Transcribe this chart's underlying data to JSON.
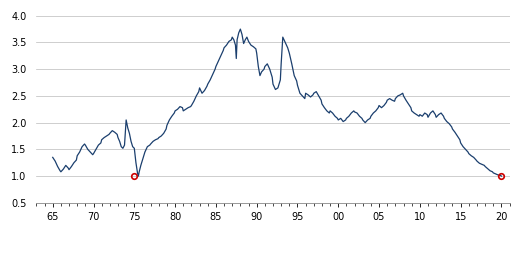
{
  "line_color": "#1B3F6E",
  "marker_color": "#CC0000",
  "xlim": [
    1963,
    2021
  ],
  "ylim": [
    0.5,
    4.1
  ],
  "yticks": [
    0.5,
    1.0,
    1.5,
    2.0,
    2.5,
    3.0,
    3.5,
    4.0
  ],
  "xtick_years": [
    1965,
    1970,
    1975,
    1980,
    1985,
    1990,
    1995,
    2000,
    2005,
    2010,
    2015,
    2020
  ],
  "xtick_labels": [
    "65",
    "70",
    "75",
    "80",
    "85",
    "90",
    "95",
    "00",
    "05",
    "10",
    "15",
    "20"
  ],
  "grid_color": "#BBBBBB",
  "background_color": "#FFFFFF",
  "marker_points": [
    [
      1975,
      1.0
    ],
    [
      2020,
      1.0
    ]
  ],
  "series": [
    [
      1965.0,
      1.35
    ],
    [
      1965.3,
      1.28
    ],
    [
      1965.6,
      1.18
    ],
    [
      1965.9,
      1.1
    ],
    [
      1966.0,
      1.08
    ],
    [
      1966.3,
      1.13
    ],
    [
      1966.6,
      1.2
    ],
    [
      1966.9,
      1.15
    ],
    [
      1967.0,
      1.12
    ],
    [
      1967.3,
      1.18
    ],
    [
      1967.6,
      1.25
    ],
    [
      1967.9,
      1.3
    ],
    [
      1968.0,
      1.38
    ],
    [
      1968.3,
      1.45
    ],
    [
      1968.6,
      1.55
    ],
    [
      1968.9,
      1.6
    ],
    [
      1969.0,
      1.58
    ],
    [
      1969.3,
      1.5
    ],
    [
      1969.6,
      1.45
    ],
    [
      1969.9,
      1.4
    ],
    [
      1970.0,
      1.42
    ],
    [
      1970.3,
      1.5
    ],
    [
      1970.6,
      1.58
    ],
    [
      1970.9,
      1.62
    ],
    [
      1971.0,
      1.68
    ],
    [
      1971.3,
      1.72
    ],
    [
      1971.6,
      1.75
    ],
    [
      1971.9,
      1.78
    ],
    [
      1972.0,
      1.8
    ],
    [
      1972.3,
      1.85
    ],
    [
      1972.6,
      1.82
    ],
    [
      1972.9,
      1.78
    ],
    [
      1973.0,
      1.72
    ],
    [
      1973.2,
      1.65
    ],
    [
      1973.4,
      1.55
    ],
    [
      1973.6,
      1.52
    ],
    [
      1973.8,
      1.58
    ],
    [
      1974.0,
      2.05
    ],
    [
      1974.2,
      1.9
    ],
    [
      1974.4,
      1.8
    ],
    [
      1974.6,
      1.65
    ],
    [
      1974.8,
      1.55
    ],
    [
      1975.0,
      1.52
    ],
    [
      1975.1,
      1.38
    ],
    [
      1975.2,
      1.25
    ],
    [
      1975.3,
      1.15
    ],
    [
      1975.4,
      1.05
    ],
    [
      1975.5,
      1.0
    ],
    [
      1975.6,
      1.08
    ],
    [
      1975.8,
      1.2
    ],
    [
      1976.0,
      1.3
    ],
    [
      1976.3,
      1.45
    ],
    [
      1976.6,
      1.55
    ],
    [
      1976.9,
      1.58
    ],
    [
      1977.0,
      1.6
    ],
    [
      1977.3,
      1.65
    ],
    [
      1977.6,
      1.68
    ],
    [
      1977.9,
      1.7
    ],
    [
      1978.0,
      1.72
    ],
    [
      1978.3,
      1.75
    ],
    [
      1978.6,
      1.8
    ],
    [
      1978.9,
      1.88
    ],
    [
      1979.0,
      1.95
    ],
    [
      1979.3,
      2.05
    ],
    [
      1979.6,
      2.12
    ],
    [
      1979.9,
      2.18
    ],
    [
      1980.0,
      2.22
    ],
    [
      1980.3,
      2.25
    ],
    [
      1980.6,
      2.3
    ],
    [
      1980.9,
      2.28
    ],
    [
      1981.0,
      2.22
    ],
    [
      1981.3,
      2.25
    ],
    [
      1981.6,
      2.28
    ],
    [
      1981.9,
      2.3
    ],
    [
      1982.0,
      2.32
    ],
    [
      1982.3,
      2.4
    ],
    [
      1982.6,
      2.5
    ],
    [
      1982.9,
      2.58
    ],
    [
      1983.0,
      2.65
    ],
    [
      1983.3,
      2.55
    ],
    [
      1983.6,
      2.6
    ],
    [
      1983.9,
      2.68
    ],
    [
      1984.0,
      2.72
    ],
    [
      1984.3,
      2.8
    ],
    [
      1984.6,
      2.9
    ],
    [
      1984.9,
      3.0
    ],
    [
      1985.0,
      3.05
    ],
    [
      1985.3,
      3.15
    ],
    [
      1985.6,
      3.25
    ],
    [
      1985.9,
      3.35
    ],
    [
      1986.0,
      3.4
    ],
    [
      1986.3,
      3.45
    ],
    [
      1986.6,
      3.52
    ],
    [
      1986.9,
      3.55
    ],
    [
      1987.0,
      3.6
    ],
    [
      1987.2,
      3.55
    ],
    [
      1987.4,
      3.45
    ],
    [
      1987.5,
      3.2
    ],
    [
      1987.6,
      3.55
    ],
    [
      1987.8,
      3.68
    ],
    [
      1988.0,
      3.75
    ],
    [
      1988.2,
      3.65
    ],
    [
      1988.4,
      3.48
    ],
    [
      1988.6,
      3.55
    ],
    [
      1988.8,
      3.6
    ],
    [
      1989.0,
      3.52
    ],
    [
      1989.3,
      3.45
    ],
    [
      1989.6,
      3.42
    ],
    [
      1989.9,
      3.38
    ],
    [
      1990.0,
      3.3
    ],
    [
      1990.2,
      3.05
    ],
    [
      1990.4,
      2.88
    ],
    [
      1990.6,
      2.95
    ],
    [
      1990.9,
      3.0
    ],
    [
      1991.0,
      3.05
    ],
    [
      1991.3,
      3.1
    ],
    [
      1991.6,
      3.0
    ],
    [
      1991.9,
      2.85
    ],
    [
      1992.0,
      2.72
    ],
    [
      1992.3,
      2.62
    ],
    [
      1992.6,
      2.65
    ],
    [
      1992.9,
      2.8
    ],
    [
      1993.0,
      3.1
    ],
    [
      1993.2,
      3.6
    ],
    [
      1993.5,
      3.5
    ],
    [
      1993.8,
      3.4
    ],
    [
      1994.0,
      3.3
    ],
    [
      1994.3,
      3.1
    ],
    [
      1994.6,
      2.88
    ],
    [
      1994.9,
      2.78
    ],
    [
      1995.0,
      2.7
    ],
    [
      1995.3,
      2.55
    ],
    [
      1995.6,
      2.5
    ],
    [
      1995.9,
      2.45
    ],
    [
      1996.0,
      2.55
    ],
    [
      1996.3,
      2.52
    ],
    [
      1996.6,
      2.48
    ],
    [
      1996.9,
      2.52
    ],
    [
      1997.0,
      2.55
    ],
    [
      1997.3,
      2.58
    ],
    [
      1997.6,
      2.5
    ],
    [
      1997.9,
      2.42
    ],
    [
      1998.0,
      2.35
    ],
    [
      1998.3,
      2.28
    ],
    [
      1998.6,
      2.22
    ],
    [
      1998.9,
      2.18
    ],
    [
      1999.0,
      2.22
    ],
    [
      1999.3,
      2.18
    ],
    [
      1999.6,
      2.12
    ],
    [
      1999.9,
      2.08
    ],
    [
      2000.0,
      2.05
    ],
    [
      2000.3,
      2.08
    ],
    [
      2000.6,
      2.02
    ],
    [
      2000.9,
      2.05
    ],
    [
      2001.0,
      2.08
    ],
    [
      2001.3,
      2.12
    ],
    [
      2001.6,
      2.18
    ],
    [
      2001.9,
      2.22
    ],
    [
      2002.0,
      2.2
    ],
    [
      2002.3,
      2.18
    ],
    [
      2002.6,
      2.12
    ],
    [
      2002.9,
      2.08
    ],
    [
      2003.0,
      2.05
    ],
    [
      2003.3,
      2.0
    ],
    [
      2003.6,
      2.05
    ],
    [
      2003.9,
      2.08
    ],
    [
      2004.0,
      2.12
    ],
    [
      2004.3,
      2.18
    ],
    [
      2004.6,
      2.22
    ],
    [
      2004.9,
      2.28
    ],
    [
      2005.0,
      2.32
    ],
    [
      2005.3,
      2.28
    ],
    [
      2005.6,
      2.32
    ],
    [
      2005.9,
      2.38
    ],
    [
      2006.0,
      2.42
    ],
    [
      2006.3,
      2.45
    ],
    [
      2006.6,
      2.42
    ],
    [
      2006.9,
      2.4
    ],
    [
      2007.0,
      2.45
    ],
    [
      2007.3,
      2.5
    ],
    [
      2007.6,
      2.52
    ],
    [
      2007.9,
      2.55
    ],
    [
      2008.0,
      2.5
    ],
    [
      2008.3,
      2.42
    ],
    [
      2008.6,
      2.35
    ],
    [
      2008.9,
      2.28
    ],
    [
      2009.0,
      2.22
    ],
    [
      2009.3,
      2.18
    ],
    [
      2009.6,
      2.15
    ],
    [
      2009.9,
      2.12
    ],
    [
      2010.0,
      2.15
    ],
    [
      2010.3,
      2.12
    ],
    [
      2010.6,
      2.18
    ],
    [
      2010.9,
      2.15
    ],
    [
      2011.0,
      2.1
    ],
    [
      2011.3,
      2.18
    ],
    [
      2011.6,
      2.22
    ],
    [
      2011.9,
      2.15
    ],
    [
      2012.0,
      2.1
    ],
    [
      2012.3,
      2.15
    ],
    [
      2012.6,
      2.18
    ],
    [
      2012.9,
      2.12
    ],
    [
      2013.0,
      2.08
    ],
    [
      2013.3,
      2.02
    ],
    [
      2013.6,
      1.98
    ],
    [
      2013.9,
      1.92
    ],
    [
      2014.0,
      1.88
    ],
    [
      2014.3,
      1.82
    ],
    [
      2014.6,
      1.75
    ],
    [
      2014.9,
      1.68
    ],
    [
      2015.0,
      1.62
    ],
    [
      2015.3,
      1.55
    ],
    [
      2015.6,
      1.5
    ],
    [
      2015.9,
      1.45
    ],
    [
      2016.0,
      1.42
    ],
    [
      2016.3,
      1.38
    ],
    [
      2016.6,
      1.35
    ],
    [
      2016.9,
      1.3
    ],
    [
      2017.0,
      1.28
    ],
    [
      2017.3,
      1.24
    ],
    [
      2017.6,
      1.22
    ],
    [
      2017.9,
      1.2
    ],
    [
      2018.0,
      1.18
    ],
    [
      2018.3,
      1.14
    ],
    [
      2018.6,
      1.1
    ],
    [
      2018.9,
      1.08
    ],
    [
      2019.0,
      1.06
    ],
    [
      2019.3,
      1.04
    ],
    [
      2019.6,
      1.02
    ],
    [
      2019.9,
      1.01
    ],
    [
      2020.0,
      1.0
    ]
  ]
}
